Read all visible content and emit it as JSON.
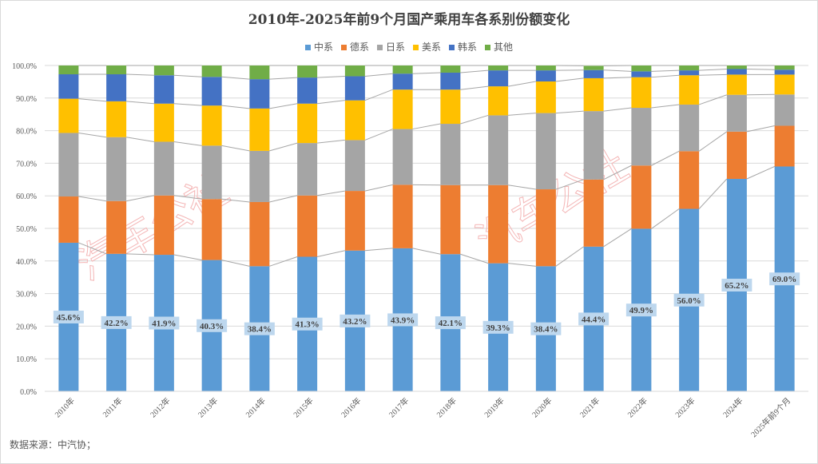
{
  "chart_data": {
    "type": "bar",
    "stacked": "percent",
    "title": "2010年-2025年前9个月国产乘用车各系别份额变化",
    "categories": [
      "2010年",
      "2011年",
      "2012年",
      "2013年",
      "2014年",
      "2015年",
      "2016年",
      "2017年",
      "2018年",
      "2019年",
      "2020年",
      "2021年",
      "2022年",
      "2023年",
      "2024年",
      "2025年前9个月"
    ],
    "series": [
      {
        "name": "中系",
        "color": "#5b9bd5",
        "values": [
          45.6,
          42.2,
          41.9,
          40.3,
          38.4,
          41.3,
          43.2,
          43.9,
          42.1,
          39.3,
          38.4,
          44.4,
          49.9,
          56.0,
          65.2,
          69.0
        ]
      },
      {
        "name": "德系",
        "color": "#ed7d31",
        "values": [
          14.2,
          16.2,
          18.2,
          18.7,
          19.7,
          18.8,
          18.3,
          19.5,
          21.2,
          24.0,
          23.6,
          20.6,
          19.4,
          17.7,
          14.5,
          12.5
        ]
      },
      {
        "name": "日系",
        "color": "#a5a5a5",
        "values": [
          19.5,
          19.6,
          16.5,
          16.4,
          15.7,
          16.1,
          15.6,
          17.1,
          18.8,
          21.4,
          23.4,
          21.0,
          17.7,
          14.3,
          11.3,
          9.6
        ]
      },
      {
        "name": "美系",
        "color": "#ffc000",
        "values": [
          10.5,
          11.0,
          11.7,
          12.3,
          13.0,
          12.1,
          12.2,
          12.1,
          10.5,
          8.9,
          9.7,
          10.1,
          9.4,
          9.0,
          6.2,
          6.1
        ]
      },
      {
        "name": "韩系",
        "color": "#4472c4",
        "values": [
          7.5,
          8.3,
          8.7,
          8.8,
          9.0,
          8.0,
          7.4,
          4.9,
          5.2,
          4.9,
          3.4,
          2.5,
          1.8,
          1.5,
          1.7,
          1.5
        ]
      },
      {
        "name": "其他",
        "color": "#70ad47",
        "values": [
          2.7,
          2.7,
          3.0,
          3.5,
          4.2,
          3.7,
          3.3,
          2.5,
          2.2,
          1.5,
          1.5,
          1.3,
          1.8,
          1.5,
          1.1,
          1.3
        ]
      }
    ],
    "data_labels_series": "中系",
    "data_labels": [
      "45.6%",
      "42.2%",
      "41.9%",
      "40.3%",
      "38.4%",
      "41.3%",
      "43.2%",
      "43.9%",
      "42.1%",
      "39.3%",
      "38.4%",
      "44.4%",
      "49.9%",
      "56.0%",
      "65.2%",
      "69.0%"
    ],
    "y_ticks": [
      "0.0%",
      "10.0%",
      "20.0%",
      "30.0%",
      "40.0%",
      "50.0%",
      "60.0%",
      "70.0%",
      "80.0%",
      "90.0%",
      "100.0%"
    ],
    "ylim": [
      0,
      100
    ],
    "grid": true,
    "legend_position": "top",
    "series_lines": true
  },
  "source": "数据来源：中汽协；",
  "watermark": "汽车公社"
}
